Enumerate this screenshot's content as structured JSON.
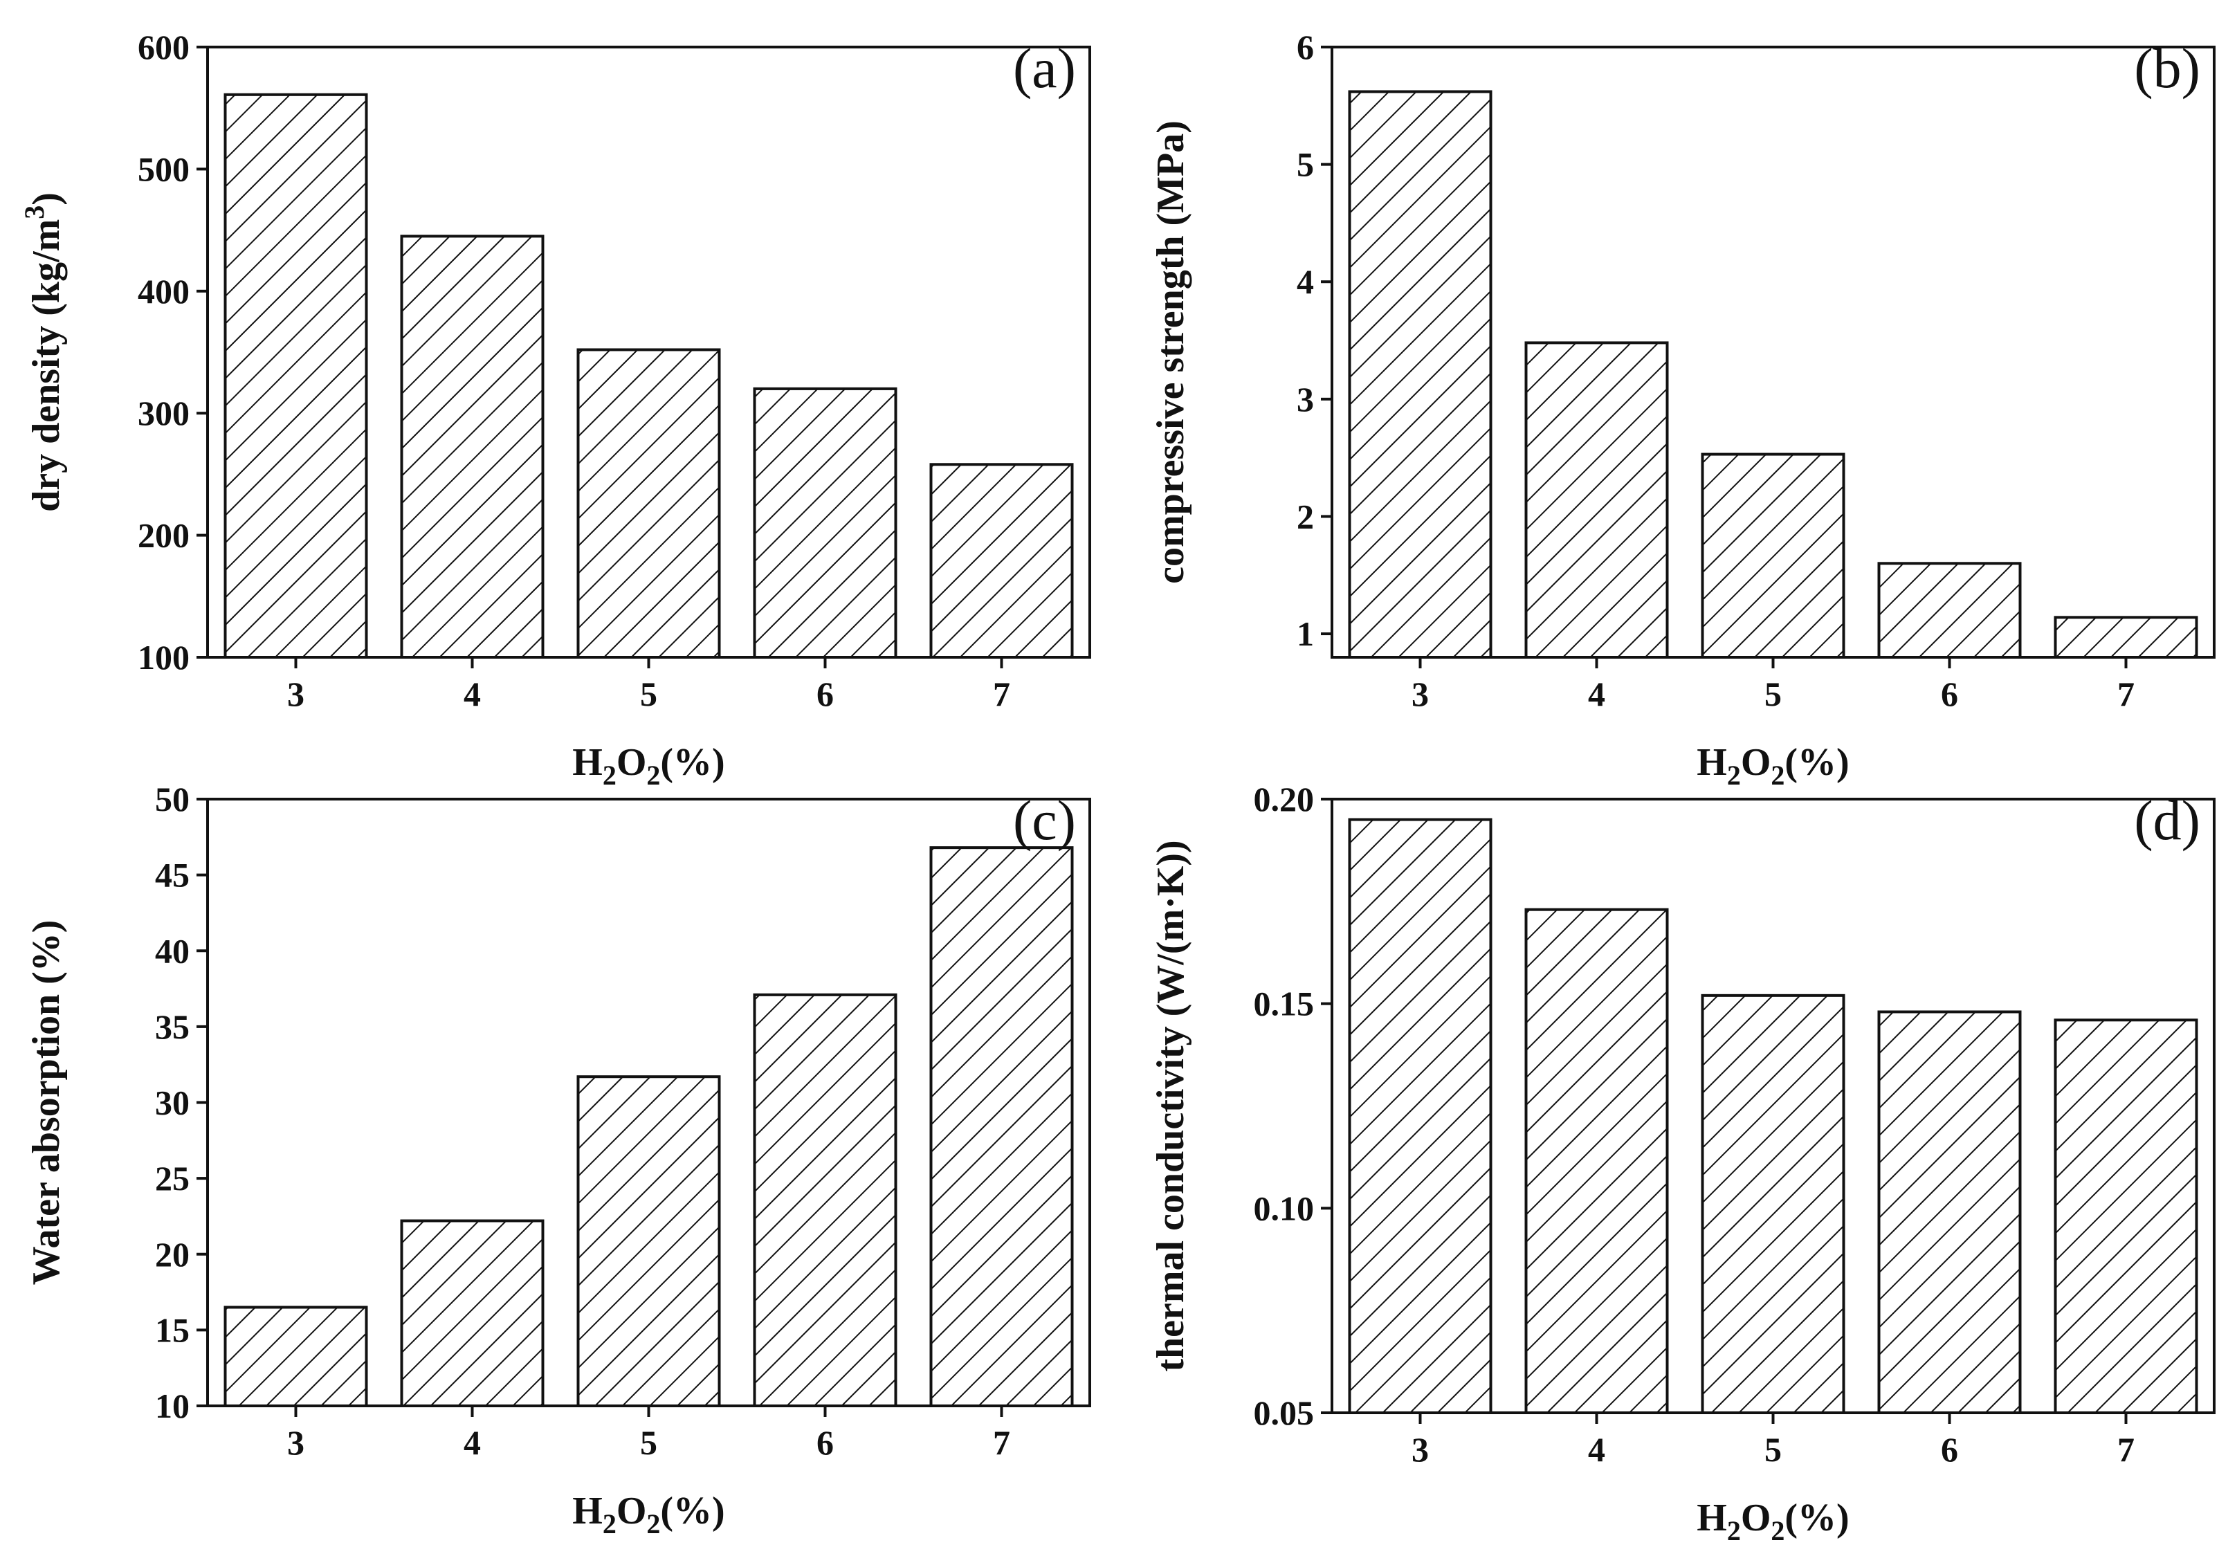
{
  "chart_data": [
    {
      "type": "bar",
      "panel_label": "(a)",
      "categories": [
        "3",
        "4",
        "5",
        "6",
        "7"
      ],
      "values": [
        561,
        445,
        352,
        320,
        258
      ],
      "xlabel": {
        "base": "H",
        "sub1": "2",
        "mid": "O",
        "sub2": "2",
        "tail": "(%)"
      },
      "ylabel": {
        "main": "dry density (kg/m",
        "sup": "3",
        "tail": ")"
      },
      "ylim": [
        100,
        600
      ],
      "yticks": [
        "100",
        "200",
        "300",
        "400",
        "500",
        "600"
      ],
      "bar_fill": "diagonal hatch"
    },
    {
      "type": "bar",
      "panel_label": "(b)",
      "categories": [
        "3",
        "4",
        "5",
        "6",
        "7"
      ],
      "values": [
        5.62,
        3.48,
        2.53,
        1.6,
        1.14
      ],
      "xlabel": {
        "base": "H",
        "sub1": "2",
        "mid": "O",
        "sub2": "2",
        "tail": "(%)"
      },
      "ylabel": {
        "main": "compressive strength (MPa)",
        "sup": "",
        "tail": ""
      },
      "ylim": [
        0.8,
        6
      ],
      "yticks": [
        "1",
        "2",
        "3",
        "4",
        "5",
        "6"
      ],
      "bar_fill": "diagonal hatch"
    },
    {
      "type": "bar",
      "panel_label": "(c)",
      "categories": [
        "3",
        "4",
        "5",
        "6",
        "7"
      ],
      "values": [
        16.5,
        22.2,
        31.7,
        37.1,
        46.8
      ],
      "xlabel": {
        "base": "H",
        "sub1": "2",
        "mid": "O",
        "sub2": "2",
        "tail": "(%)"
      },
      "ylabel": {
        "main": "Water absorption (%)",
        "sup": "",
        "tail": ""
      },
      "ylim": [
        10,
        50
      ],
      "yticks": [
        "10",
        "15",
        "20",
        "25",
        "30",
        "35",
        "40",
        "45",
        "50"
      ],
      "bar_fill": "diagonal hatch"
    },
    {
      "type": "bar",
      "panel_label": "(d)",
      "categories": [
        "3",
        "4",
        "5",
        "6",
        "7"
      ],
      "values": [
        0.195,
        0.173,
        0.152,
        0.148,
        0.146
      ],
      "xlabel": {
        "base": "H",
        "sub1": "2",
        "mid": "O",
        "sub2": "2",
        "tail": "(%)"
      },
      "ylabel": {
        "main": "thermal conductivity (W/(m·K))",
        "sup": "",
        "tail": ""
      },
      "ylim": [
        0.05,
        0.2
      ],
      "yticks": [
        "0.05",
        "0.10",
        "0.15",
        "0.20"
      ],
      "bar_fill": "diagonal hatch"
    }
  ],
  "colors": {
    "ink": "#111111",
    "bar_fill": "#ffffff"
  }
}
